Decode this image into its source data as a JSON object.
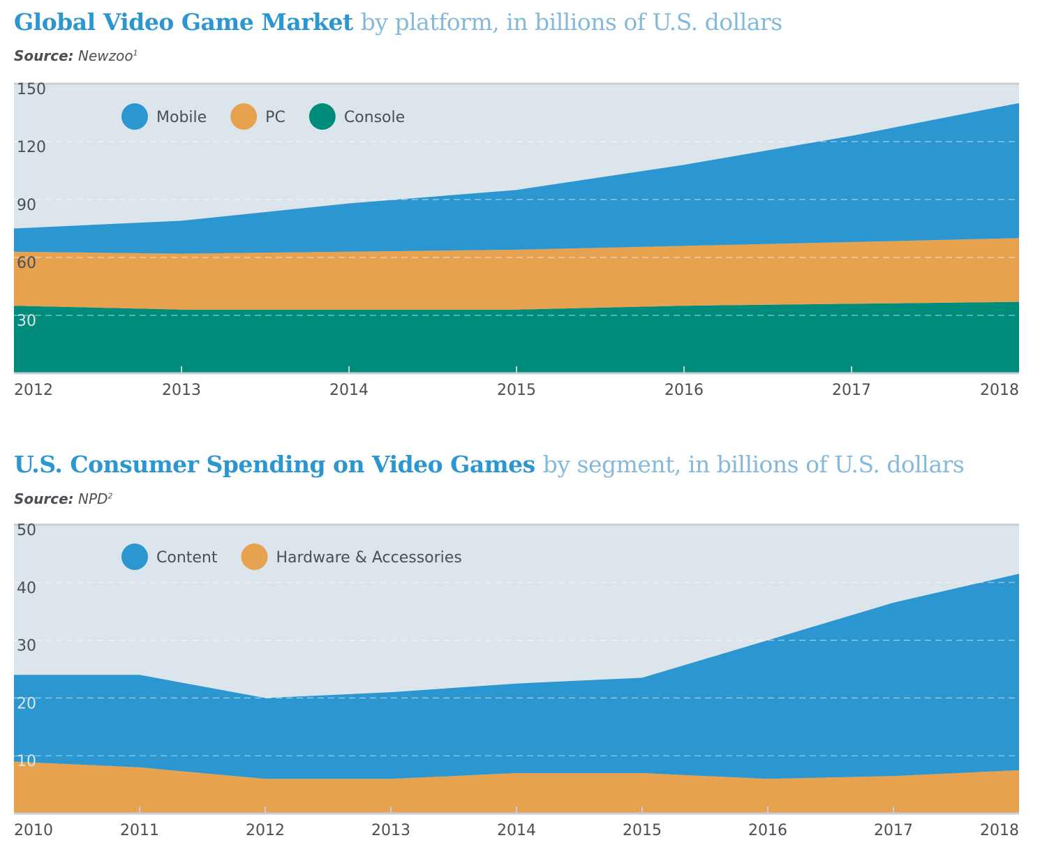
{
  "chart_data": [
    {
      "type": "area",
      "stacked": true,
      "title": "Global Video Game Market",
      "subtitle": "by platform, in billions of U.S. dollars",
      "source_label": "Source:",
      "source_name": "Newzoo",
      "source_note": "1",
      "x": [
        "2012",
        "2013",
        "2014",
        "2015",
        "2016",
        "2017",
        "2018"
      ],
      "series": [
        {
          "name": "Console",
          "color": "#008c7a",
          "values": [
            35,
            33,
            33,
            33,
            35,
            36,
            37
          ]
        },
        {
          "name": "PC",
          "color": "#e6a24e",
          "values": [
            28,
            29,
            30,
            31,
            31,
            32,
            33
          ]
        },
        {
          "name": "Mobile",
          "color": "#2b96cf",
          "values": [
            12,
            17,
            25,
            31,
            42,
            55,
            70
          ]
        }
      ],
      "ylim": [
        0,
        150
      ],
      "yticks": [
        30,
        60,
        90,
        120,
        150
      ],
      "legend_order": [
        "Mobile",
        "PC",
        "Console"
      ],
      "legend": "top-left",
      "grid": true
    },
    {
      "type": "area",
      "stacked": true,
      "title": "U.S. Consumer Spending on Video Games",
      "subtitle": "by segment, in billions of U.S. dollars",
      "source_label": "Source:",
      "source_name": "NPD",
      "source_note": "2",
      "x": [
        "2010",
        "2011",
        "2012",
        "2013",
        "2014",
        "2015",
        "2016",
        "2017",
        "2018"
      ],
      "series": [
        {
          "name": "Hardware & Accessories",
          "color": "#e6a24e",
          "values": [
            9,
            8,
            6,
            6,
            7,
            7,
            6,
            6.5,
            7.5
          ]
        },
        {
          "name": "Content",
          "color": "#2b96cf",
          "values": [
            15,
            16,
            14,
            15,
            15.5,
            16.5,
            24,
            30,
            34
          ]
        }
      ],
      "ylim": [
        0,
        50
      ],
      "yticks": [
        10,
        20,
        30,
        40,
        50
      ],
      "legend_order": [
        "Content",
        "Hardware & Accessories"
      ],
      "legend": "top-left",
      "grid": true
    }
  ],
  "colors": {
    "plot_background": "#dde5ec",
    "axis": "#c7ced4",
    "text": "#4a4f55"
  }
}
